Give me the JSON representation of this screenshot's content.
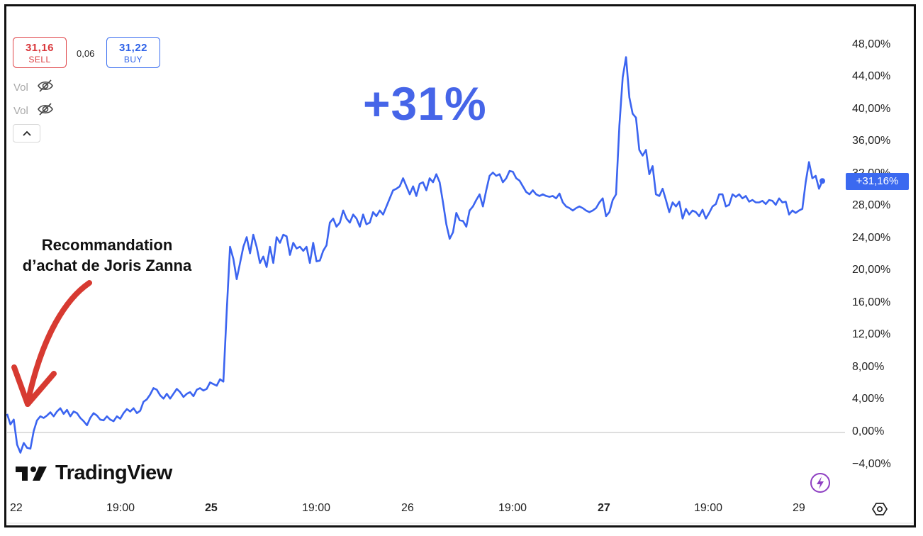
{
  "trade": {
    "sell_price": "31,16",
    "sell_label": "SELL",
    "spread": "0,06",
    "buy_price": "31,22",
    "buy_label": "BUY"
  },
  "indicators": [
    {
      "label": "Vol",
      "icon": "eye-off-icon"
    },
    {
      "label": "Vol",
      "icon": "eye-off-icon"
    }
  ],
  "headline": "+31%",
  "annotation": {
    "line1": "Recommandation",
    "line2": "d’achat de Joris Zanna"
  },
  "last_value_label": "+31,16%",
  "brand": "TradingView",
  "colors": {
    "line": "#3b64f0",
    "sell": "#d9373b",
    "buy": "#2e62e8",
    "headline": "#4665e8",
    "arrow": "#d73a31",
    "bolt": "#8e3fc2"
  },
  "chart_data": {
    "type": "line",
    "y_unit": "%",
    "y_tick_labels": [
      "48,00%",
      "44,00%",
      "40,00%",
      "36,00%",
      "32,00%",
      "28,00%",
      "24,00%",
      "20,00%",
      "16,00%",
      "12,00%",
      "8,00%",
      "4,00%",
      "0,00%",
      "−4,00%"
    ],
    "y_ticks": [
      48,
      44,
      40,
      36,
      32,
      28,
      24,
      20,
      16,
      12,
      8,
      4,
      0,
      -4
    ],
    "ylim": [
      -5.5,
      49.5
    ],
    "x_tick_labels": [
      {
        "label": "22",
        "bold": false
      },
      {
        "label": "19:00",
        "bold": false
      },
      {
        "label": "25",
        "bold": true
      },
      {
        "label": "19:00",
        "bold": false
      },
      {
        "label": "26",
        "bold": false
      },
      {
        "label": "19:00",
        "bold": false
      },
      {
        "label": "27",
        "bold": true
      },
      {
        "label": "19:00",
        "bold": false
      },
      {
        "label": "29",
        "bold": false
      }
    ],
    "last_value": 31.16,
    "series": [
      {
        "values": [
          2.3,
          1.0,
          1.6,
          -1.5,
          -2.5,
          -1.3,
          -1.9,
          -2.0,
          0.2,
          1.5,
          2.0,
          1.8,
          2.1,
          2.5,
          2.0,
          2.6,
          3.0,
          2.3,
          2.8,
          2.0,
          2.6,
          2.4,
          1.8,
          1.4,
          0.9,
          1.8,
          2.4,
          2.1,
          1.6,
          1.5,
          2.0,
          1.6,
          1.4,
          2.0,
          1.7,
          2.4,
          2.9,
          2.6,
          3.0,
          2.4,
          2.7,
          3.8,
          4.1,
          4.7,
          5.5,
          5.3,
          4.6,
          4.2,
          4.8,
          4.2,
          4.8,
          5.4,
          5.0,
          4.4,
          4.8,
          5.0,
          4.5,
          5.3,
          5.5,
          5.2,
          5.4,
          6.2,
          6.0,
          5.8,
          6.6,
          6.3,
          15.0,
          23.0,
          21.5,
          19.0,
          21.0,
          23.0,
          24.2,
          22.2,
          24.5,
          23.0,
          21.0,
          21.8,
          20.5,
          23.0,
          21.0,
          24.2,
          23.5,
          24.5,
          24.3,
          22.0,
          23.5,
          22.8,
          23.0,
          22.5,
          23.0,
          21.0,
          23.5,
          21.2,
          21.3,
          22.5,
          23.2,
          26.0,
          26.5,
          25.5,
          26.0,
          27.5,
          26.5,
          26.0,
          27.0,
          26.5,
          25.5,
          27.0,
          25.8,
          26.0,
          27.3,
          26.8,
          27.5,
          27.0,
          28.0,
          29.0,
          30.0,
          30.2,
          30.5,
          31.5,
          30.5,
          29.5,
          30.5,
          29.3,
          30.8,
          31.0,
          30.0,
          31.5,
          31.0,
          32.0,
          31.0,
          28.5,
          25.8,
          24.0,
          24.8,
          27.2,
          26.3,
          26.2,
          25.5,
          27.5,
          28.0,
          28.8,
          29.5,
          28.0,
          30.0,
          31.8,
          32.2,
          31.8,
          32.0,
          31.0,
          31.5,
          32.4,
          32.3,
          31.5,
          31.2,
          30.5,
          29.8,
          29.5,
          30.0,
          29.5,
          29.3,
          29.5,
          29.3,
          29.2,
          29.3,
          29.0,
          29.6,
          28.5,
          28.0,
          27.8,
          27.5,
          27.8,
          28.0,
          27.8,
          27.5,
          27.3,
          27.5,
          27.8,
          28.5,
          29.0,
          26.8,
          27.3,
          28.8,
          29.5,
          38.0,
          44.0,
          46.5,
          41.5,
          39.5,
          39.0,
          35.0,
          34.3,
          35.0,
          32.0,
          33.0,
          29.5,
          29.3,
          30.2,
          28.8,
          27.3,
          28.5,
          28.0,
          28.6,
          26.5,
          27.7,
          27.0,
          27.5,
          27.3,
          26.8,
          27.6,
          26.5,
          27.2,
          28.0,
          28.3,
          29.5,
          29.5,
          28.0,
          28.2,
          29.5,
          29.2,
          29.5,
          29.0,
          29.3,
          28.6,
          28.8,
          28.5,
          28.5,
          28.7,
          28.3,
          28.8,
          28.7,
          28.2,
          29.0,
          28.5,
          28.6,
          27.0,
          27.5,
          27.2,
          27.5,
          27.7,
          31.0,
          33.5,
          31.5,
          31.8,
          30.2,
          31.16
        ]
      }
    ]
  }
}
